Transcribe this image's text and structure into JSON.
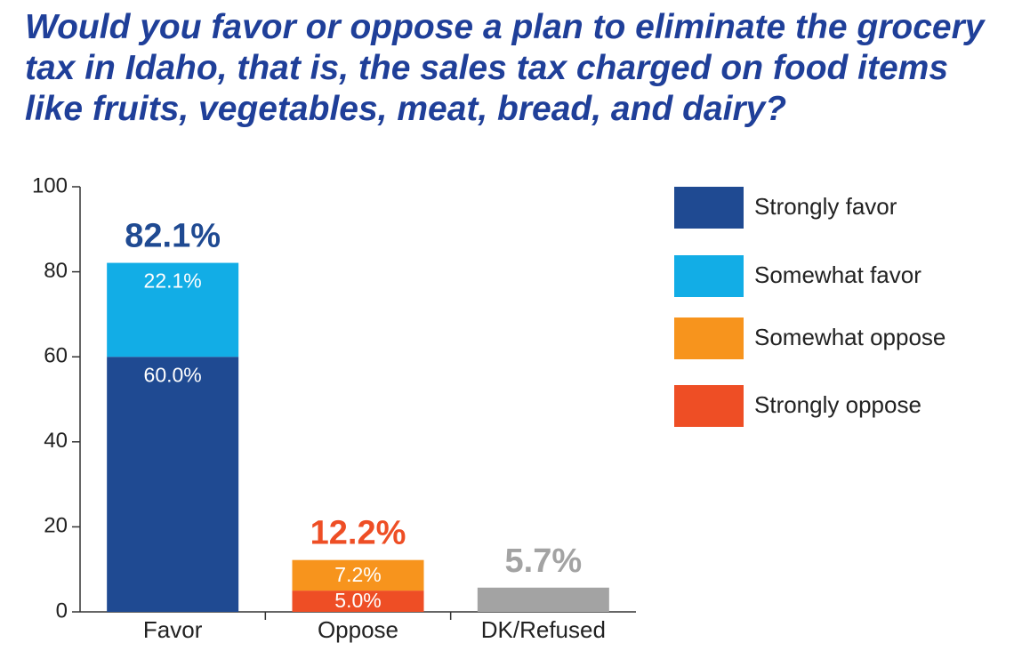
{
  "chart_data": {
    "type": "stacked-bar",
    "title": "Would you favor or oppose a plan to eliminate the grocery tax in Idaho, that is, the sales tax charged on food items like fruits, vegetables, meat, bread, and dairy?",
    "categories": [
      "Favor",
      "Oppose",
      "DK/Refused"
    ],
    "series": [
      {
        "name": "Strongly favor",
        "color": "#1f4a92",
        "values": [
          60.0,
          null,
          null
        ],
        "value_labels": [
          "60.0%",
          null,
          null
        ]
      },
      {
        "name": "Somewhat favor",
        "color": "#12ade6",
        "values": [
          22.1,
          null,
          null
        ],
        "value_labels": [
          "22.1%",
          null,
          null
        ]
      },
      {
        "name": "Somewhat oppose",
        "color": "#f7941d",
        "values": [
          null,
          7.2,
          null
        ],
        "value_labels": [
          null,
          "7.2%",
          null
        ]
      },
      {
        "name": "Strongly oppose",
        "color": "#ee4e25",
        "values": [
          null,
          5.0,
          null
        ],
        "value_labels": [
          null,
          "5.0%",
          null
        ]
      }
    ],
    "totals": {
      "values": [
        82.1,
        12.2,
        5.7
      ],
      "value_labels": [
        "82.1%",
        "12.2%",
        "5.7%"
      ],
      "colors": [
        "#1f4a92",
        "#ee4e25",
        "#a3a3a3"
      ]
    },
    "ylim": [
      0,
      100
    ],
    "yticks": [
      0,
      20,
      40,
      60,
      80,
      100
    ],
    "legend": "right",
    "grid": false
  }
}
